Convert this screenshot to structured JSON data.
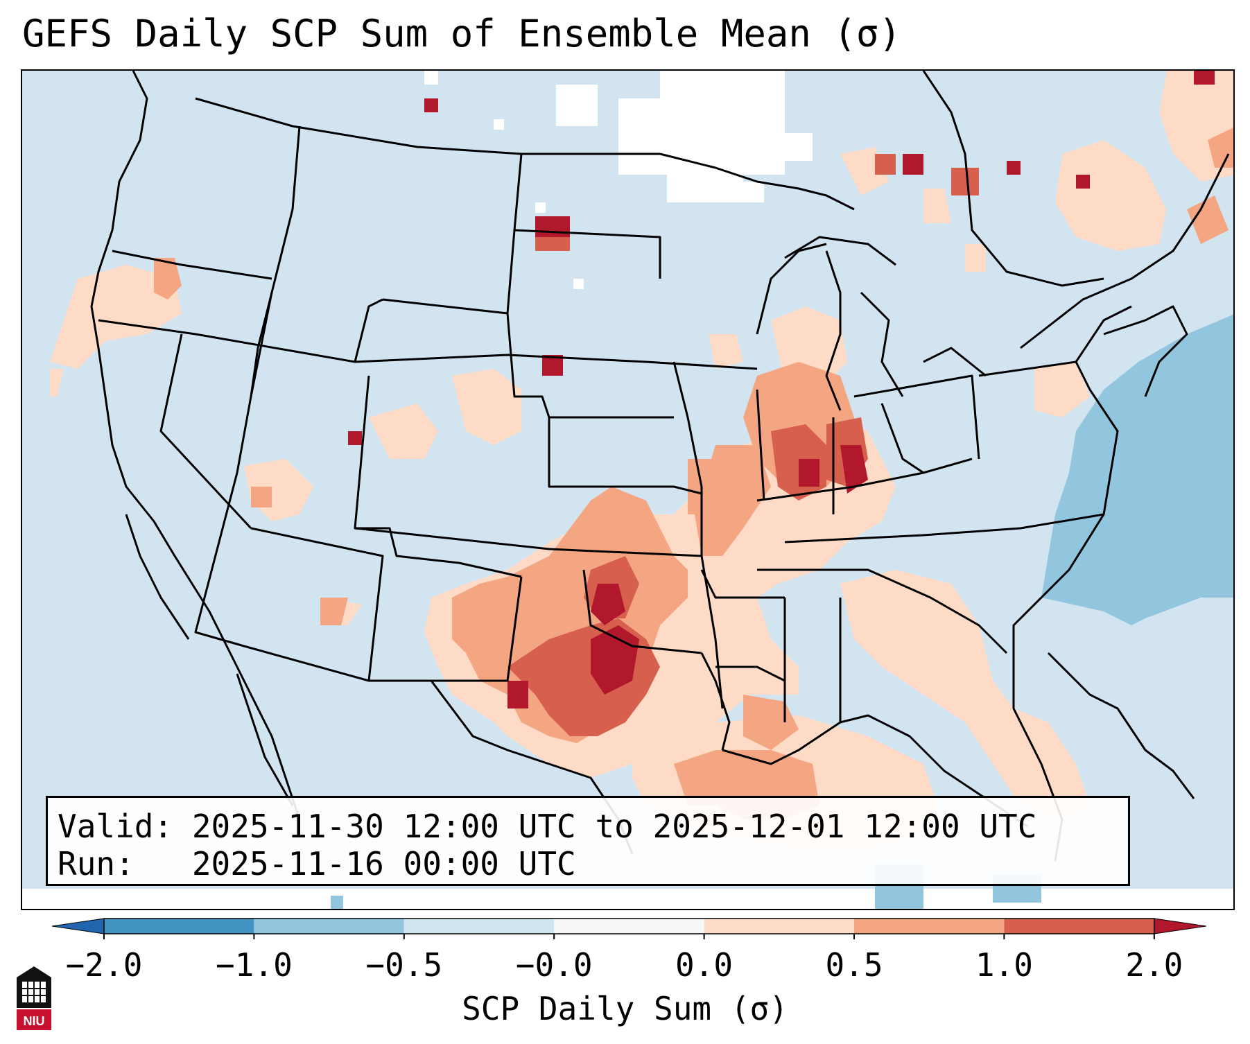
{
  "title": "GEFS Daily SCP Sum of Ensemble Mean (σ)",
  "valid_line": "Valid: 2025-11-30 12:00 UTC to 2025-12-01 12:00 UTC",
  "run_line": "Run:   2025-11-16 00:00 UTC",
  "colorbar": {
    "label": "SCP Daily Sum (σ)",
    "ticks": [
      "−2.0",
      "−1.0",
      "−0.5",
      "−0.0",
      "0.0",
      "0.5",
      "1.0",
      "2.0"
    ],
    "bin_colors": [
      "#4393c3",
      "#92c5de",
      "#d1e5f0",
      "#f7f7f7",
      "#fddbc7",
      "#f4a582",
      "#d6604d"
    ],
    "under_color": "#2166ac",
    "over_color": "#b2182b"
  },
  "logo_text": "NIU",
  "colors": {
    "ocean_base": "#d3e4f1",
    "atlantic_blue": "#92c5de",
    "light_red": "#fddbc7",
    "mid_red": "#f4a582",
    "dark_red": "#d6604d",
    "deep_red": "#b2182b",
    "white_region": "#ffffff"
  }
}
